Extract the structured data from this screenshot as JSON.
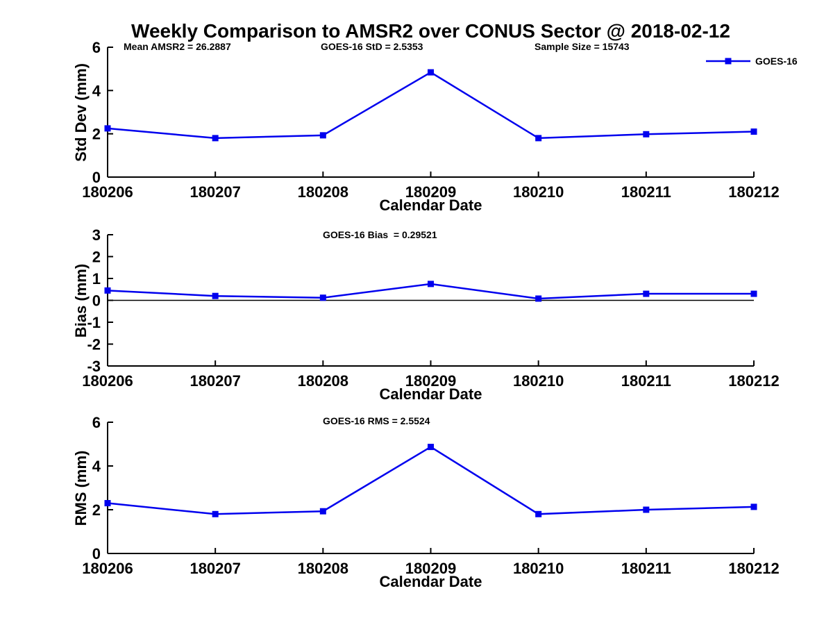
{
  "figure": {
    "title": "Weekly Comparison to AMSR2 over CONUS Sector @ 2018-02-12",
    "legend": {
      "label": "GOES-16",
      "color": "#0000EE"
    }
  },
  "chart_data": [
    {
      "type": "line",
      "name": "std-dev-panel",
      "annotations": [
        {
          "text": "Mean AMSR2 = 26.2887"
        },
        {
          "text": "GOES-16 StD = 2.5353"
        },
        {
          "text": "Sample Size = 15743"
        }
      ],
      "categories": [
        "180206",
        "180207",
        "180208",
        "180209",
        "180210",
        "180211",
        "180212"
      ],
      "series": [
        {
          "name": "GOES-16",
          "values": [
            2.25,
            1.8,
            1.93,
            4.84,
            1.8,
            1.98,
            2.1
          ]
        }
      ],
      "xlabel": "Calendar Date",
      "ylabel": "Std Dev (mm)",
      "ylim": [
        0,
        6
      ],
      "yticks": [
        0,
        2,
        4,
        6
      ],
      "zero_line": false,
      "line_color": "#0000EE",
      "grid": false,
      "legend_position": "top-right-outside"
    },
    {
      "type": "line",
      "name": "bias-panel",
      "annotations": [
        {
          "text": "GOES-16 Bias  = 0.29521"
        }
      ],
      "categories": [
        "180206",
        "180207",
        "180208",
        "180209",
        "180210",
        "180211",
        "180212"
      ],
      "series": [
        {
          "name": "GOES-16",
          "values": [
            0.45,
            0.2,
            0.12,
            0.75,
            0.08,
            0.3,
            0.3
          ]
        }
      ],
      "xlabel": "Calendar Date",
      "ylabel": "Bias (mm)",
      "ylim": [
        -3,
        3
      ],
      "yticks": [
        -3,
        -2,
        -1,
        0,
        1,
        2,
        3
      ],
      "zero_line": true,
      "line_color": "#0000EE",
      "grid": false
    },
    {
      "type": "line",
      "name": "rms-panel",
      "annotations": [
        {
          "text": "GOES-16 RMS = 2.5524"
        }
      ],
      "categories": [
        "180206",
        "180207",
        "180208",
        "180209",
        "180210",
        "180211",
        "180212"
      ],
      "series": [
        {
          "name": "GOES-16",
          "values": [
            2.3,
            1.8,
            1.93,
            4.87,
            1.8,
            2.0,
            2.13
          ]
        }
      ],
      "xlabel": "Calendar Date",
      "ylabel": "RMS (mm)",
      "ylim": [
        0,
        6
      ],
      "yticks": [
        0,
        2,
        4,
        6
      ],
      "zero_line": false,
      "line_color": "#0000EE",
      "grid": false
    }
  ]
}
